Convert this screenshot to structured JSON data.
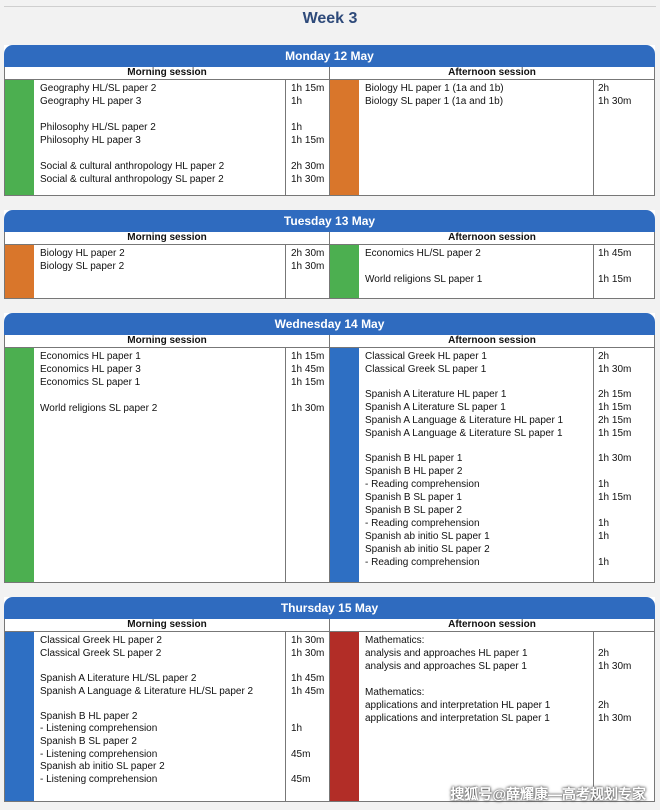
{
  "week_title": "Week 3",
  "session_labels": {
    "morning": "Morning session",
    "afternoon": "Afternoon session"
  },
  "colors": {
    "header_blue": "#2f6bbf",
    "green": "#4caf50",
    "orange": "#d9762b",
    "blue": "#2e6fc3",
    "red": "#b22d27"
  },
  "days": [
    {
      "title": "Monday 12 May",
      "morning": {
        "color": "#4caf50",
        "rows": [
          {
            "subject": "Geography HL/SL paper 2",
            "duration": "1h 15m"
          },
          {
            "subject": "Geography HL paper 3",
            "duration": "1h"
          },
          {
            "subject": "",
            "duration": ""
          },
          {
            "subject": "Philosophy HL/SL paper 2",
            "duration": "1h"
          },
          {
            "subject": "Philosophy HL paper 3",
            "duration": "1h 15m"
          },
          {
            "subject": "",
            "duration": ""
          },
          {
            "subject": "Social & cultural anthropology HL paper 2",
            "duration": "2h 30m"
          },
          {
            "subject": "Social & cultural anthropology SL paper 2",
            "duration": "1h 30m"
          }
        ]
      },
      "afternoon": {
        "color": "#d9762b",
        "rows": [
          {
            "subject": "Biology HL paper 1 (1a and 1b)",
            "duration": "2h"
          },
          {
            "subject": "Biology SL paper 1 (1a and 1b)",
            "duration": "1h 30m"
          }
        ]
      }
    },
    {
      "title": "Tuesday 13 May",
      "morning": {
        "color": "#d9762b",
        "rows": [
          {
            "subject": "Biology HL paper 2",
            "duration": "2h 30m"
          },
          {
            "subject": "Biology SL paper 2",
            "duration": "1h 30m"
          }
        ]
      },
      "afternoon": {
        "color": "#4caf50",
        "rows": [
          {
            "subject": "Economics HL/SL paper 2",
            "duration": "1h 45m"
          },
          {
            "subject": "",
            "duration": ""
          },
          {
            "subject": "World religions SL paper 1",
            "duration": "1h 15m"
          }
        ]
      }
    },
    {
      "title": "Wednesday 14 May",
      "morning": {
        "color": "#4caf50",
        "rows": [
          {
            "subject": "Economics HL paper 1",
            "duration": "1h 15m"
          },
          {
            "subject": "Economics HL paper 3",
            "duration": "1h 45m"
          },
          {
            "subject": "Economics SL paper 1",
            "duration": "1h 15m"
          },
          {
            "subject": "",
            "duration": ""
          },
          {
            "subject": "World religions SL paper 2",
            "duration": "1h 30m"
          }
        ]
      },
      "afternoon": {
        "color": "#2e6fc3",
        "rows": [
          {
            "subject": "Classical Greek HL paper 1",
            "duration": "2h"
          },
          {
            "subject": "Classical Greek SL paper 1",
            "duration": "1h 30m"
          },
          {
            "subject": "",
            "duration": ""
          },
          {
            "subject": "Spanish A Literature HL paper 1",
            "duration": "2h 15m"
          },
          {
            "subject": "Spanish A Literature SL paper 1",
            "duration": "1h 15m"
          },
          {
            "subject": "Spanish A Language & Literature HL paper 1",
            "duration": "2h 15m"
          },
          {
            "subject": "Spanish A Language & Literature SL paper 1",
            "duration": "1h 15m"
          },
          {
            "subject": "",
            "duration": ""
          },
          {
            "subject": "Spanish B HL paper 1",
            "duration": "1h 30m"
          },
          {
            "subject": "Spanish B HL paper 2",
            "duration": ""
          },
          {
            "subject": "- Reading comprehension",
            "duration": "1h"
          },
          {
            "subject": "Spanish B SL paper 1",
            "duration": "1h 15m"
          },
          {
            "subject": "Spanish B SL paper 2",
            "duration": ""
          },
          {
            "subject": "- Reading comprehension",
            "duration": "1h"
          },
          {
            "subject": "Spanish ab initio SL paper 1",
            "duration": "1h"
          },
          {
            "subject": "Spanish ab initio SL paper 2",
            "duration": ""
          },
          {
            "subject": "- Reading comprehension",
            "duration": "1h"
          }
        ]
      }
    },
    {
      "title": "Thursday 15 May",
      "morning": {
        "color": "#2e6fc3",
        "rows": [
          {
            "subject": "Classical Greek HL paper 2",
            "duration": "1h 30m"
          },
          {
            "subject": "Classical Greek SL paper 2",
            "duration": "1h 30m"
          },
          {
            "subject": "",
            "duration": ""
          },
          {
            "subject": "Spanish A Literature HL/SL paper 2",
            "duration": "1h 45m"
          },
          {
            "subject": "Spanish A Language & Literature HL/SL paper 2",
            "duration": "1h 45m"
          },
          {
            "subject": "",
            "duration": ""
          },
          {
            "subject": "Spanish B HL paper 2",
            "duration": ""
          },
          {
            "subject": "- Listening comprehension",
            "duration": "1h"
          },
          {
            "subject": "Spanish B SL paper 2",
            "duration": ""
          },
          {
            "subject": "- Listening comprehension",
            "duration": "45m"
          },
          {
            "subject": "Spanish ab initio SL paper 2",
            "duration": ""
          },
          {
            "subject": "- Listening comprehension",
            "duration": "45m"
          }
        ]
      },
      "afternoon": {
        "color": "#b22d27",
        "rows": [
          {
            "subject": "Mathematics:",
            "duration": ""
          },
          {
            "subject": "analysis and approaches HL paper 1",
            "duration": "2h"
          },
          {
            "subject": "analysis and approaches SL paper 1",
            "duration": "1h 30m"
          },
          {
            "subject": "",
            "duration": ""
          },
          {
            "subject": "Mathematics:",
            "duration": ""
          },
          {
            "subject": "applications and interpretation HL paper 1",
            "duration": "2h"
          },
          {
            "subject": "applications and interpretation SL paper 1",
            "duration": "1h 30m"
          }
        ]
      }
    }
  ],
  "watermark": "搜狐号@薛耀康—高考规划专家"
}
